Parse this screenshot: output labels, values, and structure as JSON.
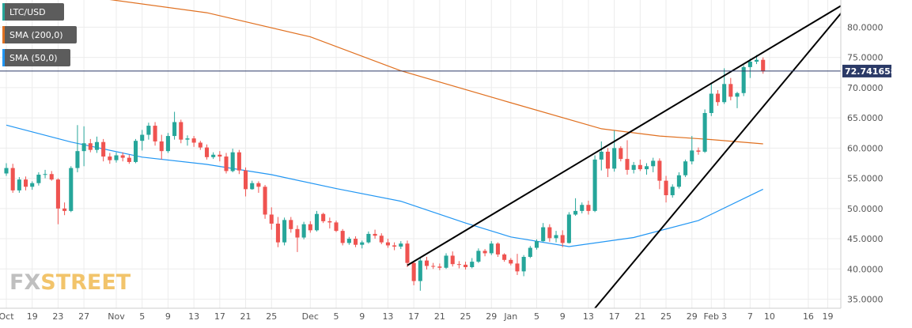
{
  "chart_data": {
    "type": "candlestick",
    "legend": [
      {
        "name": "LTC/USD",
        "color": "#26a69a"
      },
      {
        "name": "SMA (200,0)",
        "color": "#e07020"
      },
      {
        "name": "SMA (50,0)",
        "color": "#2196f3"
      }
    ],
    "current_price": "72.741658",
    "current_price_value": 72.741658,
    "y_axis": {
      "min": 33.5,
      "max": 84.5,
      "ticks": [
        "35.0000",
        "40.0000",
        "45.0000",
        "50.0000",
        "55.0000",
        "60.0000",
        "65.0000",
        "70.0000",
        "75.0000",
        "80.0000"
      ],
      "tick_values": [
        35,
        40,
        45,
        50,
        55,
        60,
        65,
        70,
        75,
        80
      ]
    },
    "x_axis": {
      "start_date": "2019-10-15",
      "end_date": "2020-02-22",
      "ticks": [
        "Oct",
        "19",
        "23",
        "27",
        "Nov",
        "5",
        "9",
        "13",
        "17",
        "21",
        "25",
        "Dec",
        "5",
        "9",
        "13",
        "17",
        "21",
        "25",
        "29",
        "Jan",
        "5",
        "9",
        "13",
        "17",
        "21",
        "25",
        "29",
        "Feb",
        "3",
        "7",
        "10",
        "16",
        "19"
      ],
      "tick_dates": [
        "2019-10-15",
        "2019-10-19",
        "2019-10-23",
        "2019-10-27",
        "2019-11-01",
        "2019-11-05",
        "2019-11-09",
        "2019-11-13",
        "2019-11-17",
        "2019-11-21",
        "2019-11-25",
        "2019-12-01",
        "2019-12-05",
        "2019-12-09",
        "2019-12-13",
        "2019-12-17",
        "2019-12-21",
        "2019-12-25",
        "2019-12-29",
        "2020-01-01",
        "2020-01-05",
        "2020-01-09",
        "2020-01-13",
        "2020-01-17",
        "2020-01-21",
        "2020-01-25",
        "2020-01-29",
        "2020-02-01",
        "2020-02-03",
        "2020-02-07",
        "2020-02-10",
        "2020-02-16",
        "2020-02-19"
      ]
    },
    "sma200": {
      "dates": [
        "2019-10-26",
        "2019-11-15",
        "2019-12-01",
        "2019-12-15",
        "2020-01-01",
        "2020-01-15",
        "2020-01-24",
        "2020-02-01",
        "2020-02-09"
      ],
      "values": [
        85.3,
        82.4,
        78.4,
        72.8,
        67.5,
        63.2,
        62.0,
        61.4,
        60.7
      ]
    },
    "sma50": {
      "dates": [
        "2019-10-15",
        "2019-10-25",
        "2019-11-05",
        "2019-11-15",
        "2019-11-25",
        "2019-12-05",
        "2019-12-15",
        "2019-12-25",
        "2020-01-01",
        "2020-01-10",
        "2020-01-20",
        "2020-01-30",
        "2020-02-09"
      ],
      "values": [
        63.8,
        61.0,
        58.5,
        57.3,
        55.6,
        53.3,
        51.2,
        47.6,
        45.3,
        43.7,
        45.2,
        48.0,
        53.2
      ]
    },
    "trendlines": [
      {
        "dates": [
          "2019-12-16",
          "2020-02-23"
        ],
        "values": [
          40.6,
          84.8
        ]
      },
      {
        "dates": [
          "2020-01-14",
          "2020-02-23"
        ],
        "values": [
          33.5,
          84.8
        ]
      }
    ],
    "candles": [
      [
        "2019-10-15",
        55.8,
        57.5,
        55.4,
        56.7
      ],
      [
        "2019-10-16",
        56.7,
        57.4,
        52.6,
        53.0
      ],
      [
        "2019-10-17",
        53.0,
        55.2,
        52.6,
        54.8
      ],
      [
        "2019-10-18",
        54.8,
        55.3,
        53.0,
        53.6
      ],
      [
        "2019-10-19",
        53.6,
        54.5,
        53.1,
        54.2
      ],
      [
        "2019-10-20",
        54.2,
        56.0,
        53.8,
        55.6
      ],
      [
        "2019-10-21",
        55.6,
        56.4,
        55.0,
        55.7
      ],
      [
        "2019-10-22",
        55.7,
        56.2,
        54.6,
        54.8
      ],
      [
        "2019-10-23",
        54.8,
        55.0,
        47.4,
        50.0
      ],
      [
        "2019-10-24",
        50.0,
        51.0,
        48.9,
        49.6
      ],
      [
        "2019-10-25",
        49.6,
        57.0,
        49.4,
        56.7
      ],
      [
        "2019-10-26",
        56.7,
        63.8,
        56.0,
        59.5
      ],
      [
        "2019-10-27",
        59.5,
        63.6,
        57.0,
        60.8
      ],
      [
        "2019-10-28",
        60.8,
        61.5,
        59.3,
        59.7
      ],
      [
        "2019-10-29",
        59.7,
        61.9,
        59.2,
        61.0
      ],
      [
        "2019-10-30",
        61.0,
        61.5,
        57.8,
        58.6
      ],
      [
        "2019-10-31",
        58.6,
        59.2,
        57.4,
        58.0
      ],
      [
        "2019-11-01",
        58.0,
        59.3,
        57.6,
        58.8
      ],
      [
        "2019-11-02",
        58.8,
        59.3,
        57.8,
        58.4
      ],
      [
        "2019-11-03",
        58.4,
        58.9,
        57.4,
        57.7
      ],
      [
        "2019-11-04",
        57.7,
        61.5,
        57.5,
        61.2
      ],
      [
        "2019-11-05",
        61.2,
        63.0,
        59.6,
        62.2
      ],
      [
        "2019-11-06",
        62.2,
        64.2,
        61.4,
        63.7
      ],
      [
        "2019-11-07",
        63.7,
        64.3,
        60.4,
        61.1
      ],
      [
        "2019-11-08",
        61.1,
        62.2,
        58.1,
        59.5
      ],
      [
        "2019-11-09",
        59.5,
        62.5,
        59.2,
        62.0
      ],
      [
        "2019-11-10",
        62.0,
        66.0,
        61.4,
        64.3
      ],
      [
        "2019-11-11",
        64.3,
        64.7,
        60.8,
        61.4
      ],
      [
        "2019-11-12",
        61.4,
        62.1,
        60.4,
        61.6
      ],
      [
        "2019-11-13",
        61.6,
        62.0,
        60.2,
        60.9
      ],
      [
        "2019-11-14",
        60.9,
        61.2,
        59.7,
        60.1
      ],
      [
        "2019-11-15",
        60.1,
        60.6,
        58.1,
        58.5
      ],
      [
        "2019-11-16",
        58.5,
        59.3,
        58.2,
        58.9
      ],
      [
        "2019-11-17",
        58.9,
        59.5,
        57.8,
        58.6
      ],
      [
        "2019-11-18",
        58.6,
        59.2,
        55.8,
        56.2
      ],
      [
        "2019-11-19",
        56.2,
        59.9,
        56.0,
        59.3
      ],
      [
        "2019-11-20",
        59.3,
        59.7,
        55.7,
        56.3
      ],
      [
        "2019-11-21",
        56.3,
        56.8,
        52.0,
        53.2
      ],
      [
        "2019-11-22",
        53.2,
        54.6,
        53.1,
        54.2
      ],
      [
        "2019-11-23",
        54.2,
        54.5,
        52.6,
        53.6
      ],
      [
        "2019-11-24",
        53.6,
        53.9,
        48.3,
        49.0
      ],
      [
        "2019-11-25",
        49.0,
        50.2,
        46.5,
        47.5
      ],
      [
        "2019-11-26",
        47.5,
        48.6,
        43.6,
        44.4
      ],
      [
        "2019-11-27",
        44.4,
        48.5,
        43.9,
        48.1
      ],
      [
        "2019-11-28",
        48.1,
        48.6,
        46.0,
        46.6
      ],
      [
        "2019-11-29",
        46.6,
        47.2,
        42.8,
        45.2
      ],
      [
        "2019-11-30",
        45.2,
        47.8,
        44.9,
        47.4
      ],
      [
        "2019-12-01",
        47.4,
        47.9,
        46.0,
        46.4
      ],
      [
        "2019-12-02",
        46.4,
        49.6,
        46.2,
        49.1
      ],
      [
        "2019-12-03",
        49.1,
        49.3,
        47.6,
        47.9
      ],
      [
        "2019-12-04",
        47.9,
        48.5,
        46.7,
        47.7
      ],
      [
        "2019-12-05",
        47.7,
        48.0,
        46.1,
        46.3
      ],
      [
        "2019-12-06",
        46.3,
        46.6,
        43.9,
        44.3
      ],
      [
        "2019-12-07",
        44.3,
        45.3,
        44.0,
        45.0
      ],
      [
        "2019-12-08",
        45.0,
        45.4,
        43.6,
        44.0
      ],
      [
        "2019-12-09",
        44.0,
        44.7,
        43.4,
        44.4
      ],
      [
        "2019-12-10",
        44.4,
        46.2,
        44.2,
        45.8
      ],
      [
        "2019-12-11",
        45.8,
        46.5,
        45.0,
        45.5
      ],
      [
        "2019-12-12",
        45.5,
        45.9,
        44.1,
        44.4
      ],
      [
        "2019-12-13",
        44.4,
        45.0,
        43.5,
        43.9
      ],
      [
        "2019-12-14",
        43.9,
        44.4,
        43.1,
        43.7
      ],
      [
        "2019-12-15",
        43.7,
        44.6,
        43.3,
        44.2
      ],
      [
        "2019-12-16",
        44.2,
        44.7,
        40.3,
        41.0
      ],
      [
        "2019-12-17",
        41.0,
        41.3,
        37.3,
        38.0
      ],
      [
        "2019-12-18",
        38.0,
        41.9,
        36.4,
        41.4
      ],
      [
        "2019-12-19",
        41.4,
        42.0,
        39.9,
        40.5
      ],
      [
        "2019-12-20",
        40.5,
        41.0,
        40.0,
        40.4
      ],
      [
        "2019-12-21",
        40.4,
        40.9,
        39.8,
        40.2
      ],
      [
        "2019-12-22",
        40.2,
        42.6,
        40.0,
        42.2
      ],
      [
        "2019-12-23",
        42.2,
        42.9,
        40.4,
        40.8
      ],
      [
        "2019-12-24",
        40.8,
        41.3,
        40.1,
        40.7
      ],
      [
        "2019-12-25",
        40.7,
        41.2,
        39.9,
        40.3
      ],
      [
        "2019-12-26",
        40.3,
        41.8,
        40.1,
        41.2
      ],
      [
        "2019-12-27",
        41.2,
        43.4,
        41.0,
        43.0
      ],
      [
        "2019-12-28",
        43.0,
        43.3,
        42.1,
        42.6
      ],
      [
        "2019-12-29",
        42.6,
        44.6,
        42.3,
        44.2
      ],
      [
        "2019-12-30",
        44.2,
        44.4,
        42.0,
        42.4
      ],
      [
        "2019-12-31",
        42.4,
        42.6,
        41.2,
        41.5
      ],
      [
        "2020-01-01",
        41.5,
        41.8,
        40.6,
        40.9
      ],
      [
        "2020-01-02",
        40.9,
        42.5,
        39.0,
        39.6
      ],
      [
        "2020-01-03",
        39.6,
        42.3,
        38.8,
        42.0
      ],
      [
        "2020-01-04",
        42.0,
        43.8,
        41.8,
        43.5
      ],
      [
        "2020-01-05",
        43.5,
        44.9,
        43.2,
        44.6
      ],
      [
        "2020-01-06",
        44.6,
        47.6,
        44.5,
        46.9
      ],
      [
        "2020-01-07",
        46.9,
        47.4,
        44.5,
        45.1
      ],
      [
        "2020-01-08",
        45.1,
        46.3,
        44.4,
        45.6
      ],
      [
        "2020-01-09",
        45.6,
        46.4,
        43.6,
        44.3
      ],
      [
        "2020-01-10",
        44.3,
        49.4,
        44.2,
        49.0
      ],
      [
        "2020-01-11",
        49.0,
        51.7,
        48.8,
        49.6
      ],
      [
        "2020-01-12",
        49.6,
        51.0,
        49.2,
        50.6
      ],
      [
        "2020-01-13",
        50.6,
        51.3,
        49.0,
        49.6
      ],
      [
        "2020-01-14",
        49.6,
        58.8,
        49.4,
        58.1
      ],
      [
        "2020-01-15",
        58.1,
        61.1,
        56.3,
        59.4
      ],
      [
        "2020-01-16",
        59.4,
        60.0,
        55.2,
        56.6
      ],
      [
        "2020-01-17",
        56.6,
        62.9,
        56.1,
        60.0
      ],
      [
        "2020-01-18",
        60.0,
        60.3,
        57.8,
        58.2
      ],
      [
        "2020-01-19",
        58.2,
        61.3,
        55.6,
        56.4
      ],
      [
        "2020-01-20",
        56.4,
        57.7,
        55.8,
        57.2
      ],
      [
        "2020-01-21",
        57.2,
        58.1,
        56.2,
        56.5
      ],
      [
        "2020-01-22",
        56.5,
        57.5,
        55.6,
        57.0
      ],
      [
        "2020-01-23",
        57.0,
        58.4,
        56.0,
        57.9
      ],
      [
        "2020-01-24",
        57.9,
        58.3,
        53.2,
        54.6
      ],
      [
        "2020-01-25",
        54.6,
        55.4,
        51.0,
        52.2
      ],
      [
        "2020-01-26",
        52.2,
        54.0,
        51.8,
        53.6
      ],
      [
        "2020-01-27",
        53.6,
        56.0,
        53.3,
        55.5
      ],
      [
        "2020-01-28",
        55.5,
        58.1,
        55.2,
        57.8
      ],
      [
        "2020-01-29",
        57.8,
        62.0,
        57.3,
        59.6
      ],
      [
        "2020-01-30",
        59.6,
        60.1,
        58.9,
        59.4
      ],
      [
        "2020-01-31",
        59.4,
        66.4,
        59.2,
        65.8
      ],
      [
        "2020-02-01",
        65.8,
        70.8,
        65.3,
        69.0
      ],
      [
        "2020-02-02",
        69.0,
        69.6,
        67.0,
        67.6
      ],
      [
        "2020-02-03",
        67.6,
        73.2,
        67.3,
        70.6
      ],
      [
        "2020-02-04",
        70.6,
        71.6,
        67.9,
        68.5
      ],
      [
        "2020-02-05",
        68.5,
        69.3,
        66.6,
        69.1
      ],
      [
        "2020-02-06",
        69.1,
        73.7,
        68.6,
        73.4
      ],
      [
        "2020-02-07",
        73.4,
        74.8,
        71.6,
        74.3
      ],
      [
        "2020-02-08",
        74.3,
        75.4,
        73.9,
        74.6
      ],
      [
        "2020-02-09",
        74.6,
        75.0,
        72.3,
        72.7
      ]
    ],
    "colors": {
      "up": "#26a69a",
      "down": "#ef5350",
      "grid": "#ececec",
      "trend": "#000000",
      "price_line": "#2b3a67",
      "price_tag": "#2b3a67"
    }
  },
  "watermark": {
    "part1": "FX",
    "part2": "STREET"
  }
}
